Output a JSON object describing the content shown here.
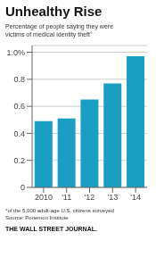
{
  "chart_data": {
    "type": "bar",
    "title": "Unhealthy Rise",
    "subtitle": "Percentage of people saying they were\nvictims of medical identity theft°",
    "annotations": [
      "°of the 5,000 adult-age U.S. citizens surveyed\nSource: Ponemon Institute",
      "THE WALL STREET JOURNAL."
    ],
    "categories": [
      "2010",
      "'11",
      "'12",
      "'13",
      "'14"
    ],
    "values": [
      0.49,
      0.51,
      0.65,
      0.77,
      0.97
    ],
    "color": "#1a9fc4",
    "ylim": [
      0,
      1.05
    ],
    "yticks": [
      0,
      0.2,
      0.4,
      0.6,
      0.8,
      {
        "value": 1,
        "label": "1.0%"
      }
    ],
    "grid": true
  }
}
